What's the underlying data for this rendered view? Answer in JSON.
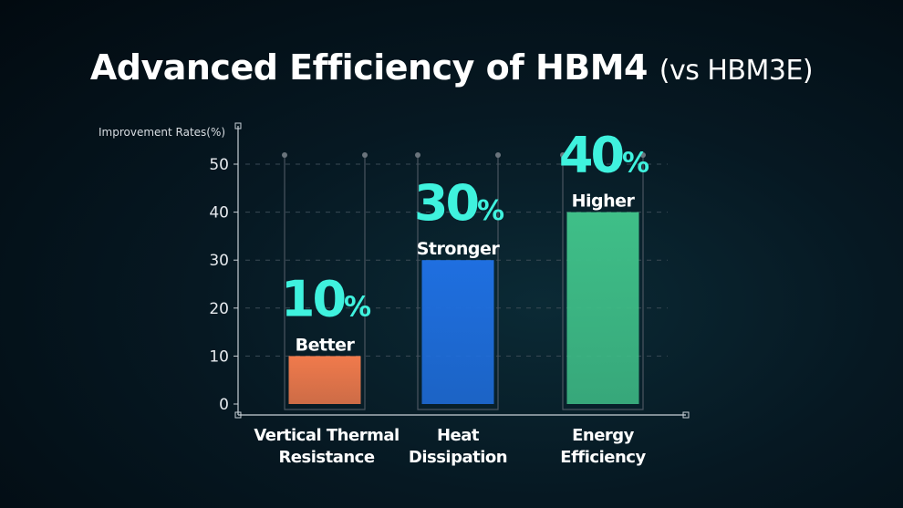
{
  "title": {
    "main": "Advanced Efficiency of HBM4",
    "sub": "(vs HBM3E)"
  },
  "chart_data": {
    "type": "bar",
    "title": "Advanced Efficiency of HBM4 (vs HBM3E)",
    "ylabel": "Improvement Rates(%)",
    "xlabel": "",
    "ylim": [
      0,
      50
    ],
    "yticks": [
      "0",
      "10",
      "20",
      "30",
      "40",
      "50"
    ],
    "grid": true,
    "categories": [
      "Vertical Thermal Resistance",
      "Heat Dissipation",
      "Energy Efficiency"
    ],
    "category_lines": [
      [
        "Vertical Thermal",
        "Resistance"
      ],
      [
        "Heat",
        "Dissipation"
      ],
      [
        "Energy",
        "Efficiency"
      ]
    ],
    "values": [
      10,
      30,
      40
    ],
    "annotations": [
      {
        "value": "10",
        "unit": "%",
        "word": "Better"
      },
      {
        "value": "30",
        "unit": "%",
        "word": "Stronger"
      },
      {
        "value": "40",
        "unit": "%",
        "word": "Higher"
      }
    ],
    "colors": [
      "#f07a4c",
      "#1f6fe0",
      "#3fbf88"
    ],
    "accent": "#3ff2de"
  }
}
